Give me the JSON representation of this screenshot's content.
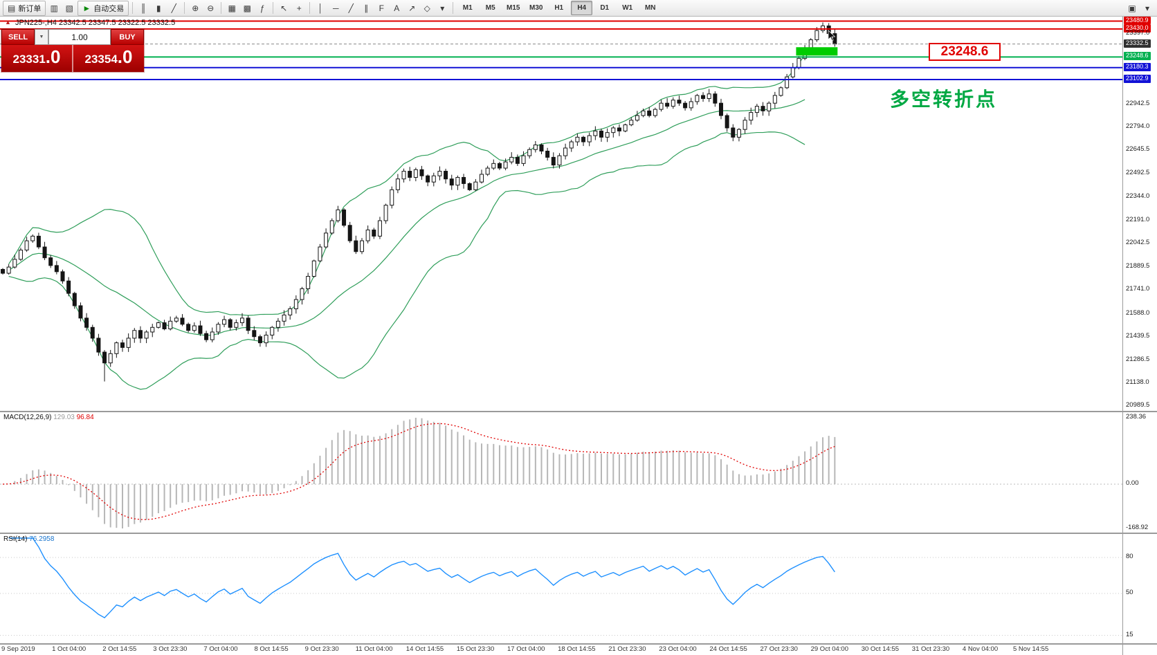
{
  "toolbar": {
    "new_order_label": "新订单",
    "autotrading_label": "自动交易",
    "icons": {
      "new_order": "▤",
      "profiles": "▥",
      "charts": "▧",
      "play": "►",
      "bars": "║",
      "candles": "▮",
      "line": "╱",
      "zoom_in": "⊕",
      "zoom_out": "⊖",
      "tile": "▦",
      "arrange": "▩",
      "indicators": "ƒ",
      "cursor": "↖",
      "crosshair": "+",
      "vline": "│",
      "hline": "─",
      "trend": "╱",
      "channel": "∥",
      "fib": "F",
      "text": "A",
      "arrows": "↗",
      "shapes": "◇",
      "more": "▾",
      "monitor": "▣",
      "caret": "▼"
    },
    "timeframes": [
      "M1",
      "M5",
      "M15",
      "M30",
      "H1",
      "H4",
      "D1",
      "W1",
      "MN"
    ],
    "active_timeframe": "H4"
  },
  "chart": {
    "symbol_info": "JPN225-,H4  23342.5 23347.5 23322.5 23332.5",
    "trade_panel": {
      "sell_label": "SELL",
      "buy_label": "BUY",
      "volume": "1.00",
      "sell_price_main": "23331",
      "sell_price_frac": ".0",
      "buy_price_main": "23354",
      "buy_price_frac": ".0"
    },
    "annotation": "多空转折点",
    "price_box": "23248.6",
    "current_price": {
      "value": 23332.5,
      "label": "23332.5"
    },
    "hlines": [
      {
        "value": 23480.9,
        "label": "23480.9",
        "color": "#e00000"
      },
      {
        "value": 23430.0,
        "label": "23430.0",
        "color": "#e00000"
      },
      {
        "value": 23248.6,
        "label": "23248.6",
        "color": "#00b050"
      },
      {
        "value": 23180.3,
        "label": "23180.3",
        "color": "#1212d6"
      },
      {
        "value": 23102.9,
        "label": "23102.9",
        "color": "#1212d6"
      }
    ],
    "axis_labels": [
      "23397.0",
      "22942.5",
      "22794.0",
      "22645.5",
      "22492.5",
      "22344.0",
      "22191.0",
      "22042.5",
      "21889.5",
      "21741.0",
      "21588.0",
      "21439.5",
      "21286.5",
      "21138.0",
      "20989.5"
    ]
  },
  "macd": {
    "name": "MACD(12,26,9)",
    "value_main": "129.03",
    "value_signal": "96.84",
    "axis": [
      "238.36",
      "0.00",
      "-168.92"
    ]
  },
  "rsi": {
    "name": "RSI(14)",
    "value": "76.2958",
    "axis": [
      "80",
      "50",
      "15"
    ]
  },
  "time_axis": [
    "9 Sep 2019",
    "1 Oct 04:00",
    "2 Oct 14:55",
    "3 Oct 23:30",
    "7 Oct 04:00",
    "8 Oct 14:55",
    "9 Oct 23:30",
    "11 Oct 04:00",
    "14 Oct 14:55",
    "15 Oct 23:30",
    "17 Oct 04:00",
    "18 Oct 14:55",
    "21 Oct 23:30",
    "23 Oct 04:00",
    "24 Oct 14:55",
    "27 Oct 23:30",
    "29 Oct 04:00",
    "30 Oct 14:55",
    "31 Oct 23:30",
    "4 Nov 04:00",
    "5 Nov 14:55"
  ],
  "chart_data": {
    "type": "candlestick",
    "symbol": "JPN225",
    "timeframe": "H4",
    "ylim": [
      20960,
      23510
    ],
    "closes": [
      21850,
      21890,
      21940,
      22000,
      22060,
      22090,
      22020,
      21950,
      21900,
      21860,
      21800,
      21720,
      21640,
      21560,
      21500,
      21430,
      21340,
      21270,
      21330,
      21400,
      21370,
      21430,
      21480,
      21430,
      21470,
      21500,
      21530,
      21490,
      21540,
      21560,
      21520,
      21480,
      21510,
      21460,
      21420,
      21470,
      21520,
      21550,
      21500,
      21530,
      21560,
      21480,
      21440,
      21400,
      21450,
      21500,
      21540,
      21580,
      21620,
      21680,
      21750,
      21830,
      21930,
      22020,
      22110,
      22190,
      22260,
      22160,
      22060,
      21990,
      22060,
      22130,
      22090,
      22190,
      22290,
      22390,
      22460,
      22510,
      22470,
      22520,
      22480,
      22440,
      22480,
      22510,
      22460,
      22420,
      22470,
      22430,
      22390,
      22440,
      22490,
      22530,
      22560,
      22530,
      22570,
      22600,
      22560,
      22610,
      22650,
      22680,
      22640,
      22600,
      22550,
      22610,
      22660,
      22700,
      22730,
      22700,
      22740,
      22770,
      22730,
      22760,
      22790,
      22770,
      22810,
      22840,
      22870,
      22900,
      22870,
      22910,
      22950,
      22930,
      22970,
      22950,
      22920,
      22960,
      23000,
      22980,
      23010,
      22950,
      22870,
      22790,
      22730,
      22780,
      22840,
      22890,
      22930,
      22900,
      22950,
      23000,
      23050,
      23120,
      23180,
      23240,
      23300,
      23360,
      23420,
      23450,
      23400,
      23332.5
    ],
    "wick_overrides": {
      "17": {
        "low": 21150
      },
      "137": {
        "high": 23472
      }
    },
    "highlight_rect": {
      "from_index": 133,
      "to_index": 139,
      "price_low": 23258,
      "price_high": 23312,
      "color": "#00cc00"
    },
    "indicators": {
      "bollinger_period": 20,
      "bollinger_dev": 2,
      "macd": [
        12,
        26,
        9
      ],
      "rsi_period": 14
    }
  }
}
